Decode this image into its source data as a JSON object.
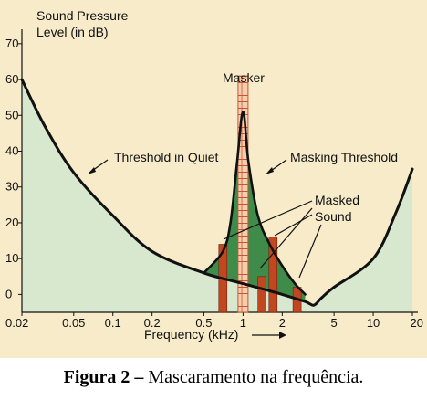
{
  "chart_data": {
    "type": "line",
    "ylabel": "Sound Pressure Level (in dB)",
    "xlabel": "Frequency (kHz)",
    "x_scale": "log",
    "xlim": [
      0.02,
      20
    ],
    "ylim": [
      -5,
      72
    ],
    "x_ticks": [
      {
        "value": 0.02,
        "label": "0.02"
      },
      {
        "value": 0.05,
        "label": "0.05"
      },
      {
        "value": 0.1,
        "label": "0.1"
      },
      {
        "value": 0.2,
        "label": "0.2"
      },
      {
        "value": 0.5,
        "label": "0.5"
      },
      {
        "value": 1,
        "label": "1"
      },
      {
        "value": 2,
        "label": "2"
      },
      {
        "value": 5,
        "label": "5"
      },
      {
        "value": 10,
        "label": "10"
      },
      {
        "value": 20,
        "label": "20"
      }
    ],
    "y_ticks": [
      {
        "value": 0,
        "label": "0"
      },
      {
        "value": 10,
        "label": "10"
      },
      {
        "value": 20,
        "label": "20"
      },
      {
        "value": 30,
        "label": "30"
      },
      {
        "value": 40,
        "label": "40"
      },
      {
        "value": 50,
        "label": "50"
      },
      {
        "value": 60,
        "label": "60"
      },
      {
        "value": 70,
        "label": "70"
      }
    ],
    "threshold_in_quiet": {
      "name": "Threshold in Quiet",
      "points": [
        [
          0.02,
          60
        ],
        [
          0.03,
          47
        ],
        [
          0.05,
          34
        ],
        [
          0.1,
          22
        ],
        [
          0.2,
          12
        ],
        [
          0.5,
          6
        ],
        [
          1,
          3
        ],
        [
          2,
          0
        ],
        [
          3,
          -2
        ],
        [
          3.5,
          -3
        ],
        [
          4,
          -1
        ],
        [
          5,
          2
        ],
        [
          10,
          10
        ],
        [
          15,
          23
        ],
        [
          20,
          35
        ]
      ]
    },
    "masking_threshold": {
      "name": "Masking Threshold",
      "points": [
        [
          0.5,
          6
        ],
        [
          0.7,
          12
        ],
        [
          0.8,
          20
        ],
        [
          0.9,
          37
        ],
        [
          1,
          51
        ],
        [
          1.1,
          37
        ],
        [
          1.3,
          22
        ],
        [
          1.6,
          14
        ],
        [
          2,
          8
        ],
        [
          2.5,
          3
        ],
        [
          3,
          0
        ]
      ]
    },
    "masker": {
      "name": "Masker",
      "frequency": 1,
      "level": 61,
      "color": "#f3c9a0",
      "border": "#c9533a"
    },
    "masked_sounds": {
      "name": "Masked Sound",
      "bars": [
        {
          "frequency": 0.7,
          "level": 14
        },
        {
          "frequency": 1.4,
          "level": 5
        },
        {
          "frequency": 1.7,
          "level": 16
        },
        {
          "frequency": 2.6,
          "level": 2
        }
      ],
      "color": "#c0471f"
    },
    "colors": {
      "quiet_fill": "#d8e8cf",
      "masked_fill": "#3f8c4a",
      "background": "#f7ebc9",
      "curve": "#111111"
    }
  },
  "labels": {
    "ylabel_line1": "Sound Pressure",
    "ylabel_line2": "Level (in dB)",
    "masker": "Masker",
    "threshold_in_quiet": "Threshold in Quiet",
    "masking_threshold": "Masking Threshold",
    "masked_line1": "Masked",
    "masked_line2": "Sound",
    "xlabel": "Frequency (kHz)"
  },
  "caption": {
    "label": "Figura 2 –",
    "text": " Mascaramento na frequência."
  }
}
